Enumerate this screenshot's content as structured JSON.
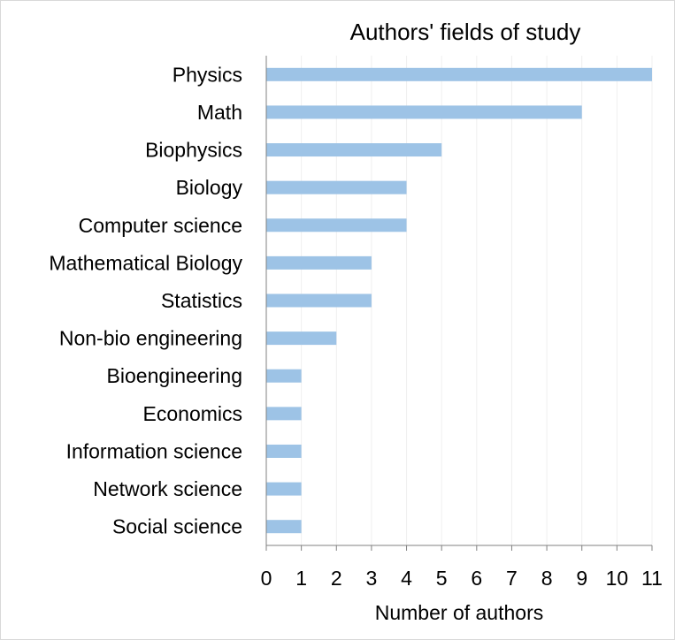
{
  "chart_data": {
    "type": "bar",
    "orientation": "horizontal",
    "title": "Authors' fields of study",
    "xlabel": "Number of authors",
    "ylabel": "",
    "xlim": [
      0,
      11
    ],
    "xticks": [
      0,
      1,
      2,
      3,
      4,
      5,
      6,
      7,
      8,
      9,
      10,
      11
    ],
    "grid": "vertical",
    "legend": "none",
    "bar_color": "#9dc3e6",
    "categories": [
      "Physics",
      "Math",
      "Biophysics",
      "Biology",
      "Computer science",
      "Mathematical Biology",
      "Statistics",
      "Non-bio engineering",
      "Bioengineering",
      "Economics",
      "Information science",
      "Network science",
      "Social science"
    ],
    "values": [
      11,
      9,
      5,
      4,
      4,
      3,
      3,
      2,
      1,
      1,
      1,
      1,
      1
    ]
  }
}
